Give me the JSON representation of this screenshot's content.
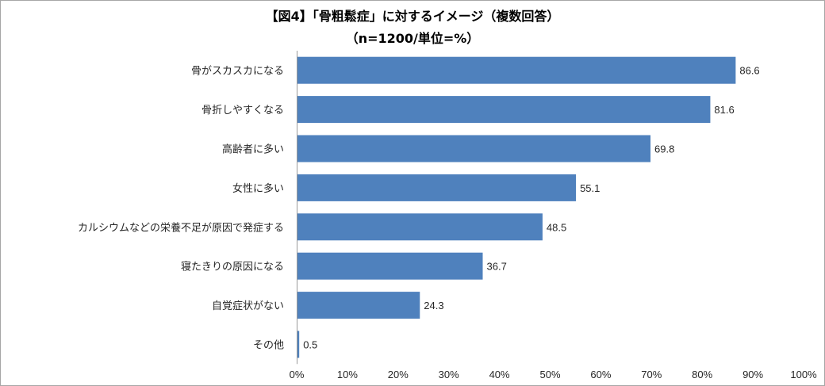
{
  "chart_data": {
    "type": "bar",
    "orientation": "horizontal",
    "title": "【図4】「骨粗鬆症」に対するイメージ（複数回答）",
    "subtitle": "（n=1200/単位=%）",
    "categories": [
      "骨がスカスカになる",
      "骨折しやすくなる",
      "高齢者に多い",
      "女性に多い",
      "カルシウムなどの栄養不足が原因で発症する",
      "寝たきりの原因になる",
      "自覚症状がない",
      "その他"
    ],
    "values": [
      86.6,
      81.6,
      69.8,
      55.1,
      48.5,
      36.7,
      24.3,
      0.5
    ],
    "value_labels": [
      "86.6",
      "81.6",
      "69.8",
      "55.1",
      "48.5",
      "36.7",
      "24.3",
      "0.5"
    ],
    "xlim": [
      0,
      100
    ],
    "xticks": [
      0,
      10,
      20,
      30,
      40,
      50,
      60,
      70,
      80,
      90,
      100
    ],
    "xtick_labels": [
      "0%",
      "10%",
      "20%",
      "30%",
      "40%",
      "50%",
      "60%",
      "70%",
      "80%",
      "90%",
      "100%"
    ],
    "grid": false,
    "legend": "none",
    "bar_color": "#4f81bd"
  }
}
